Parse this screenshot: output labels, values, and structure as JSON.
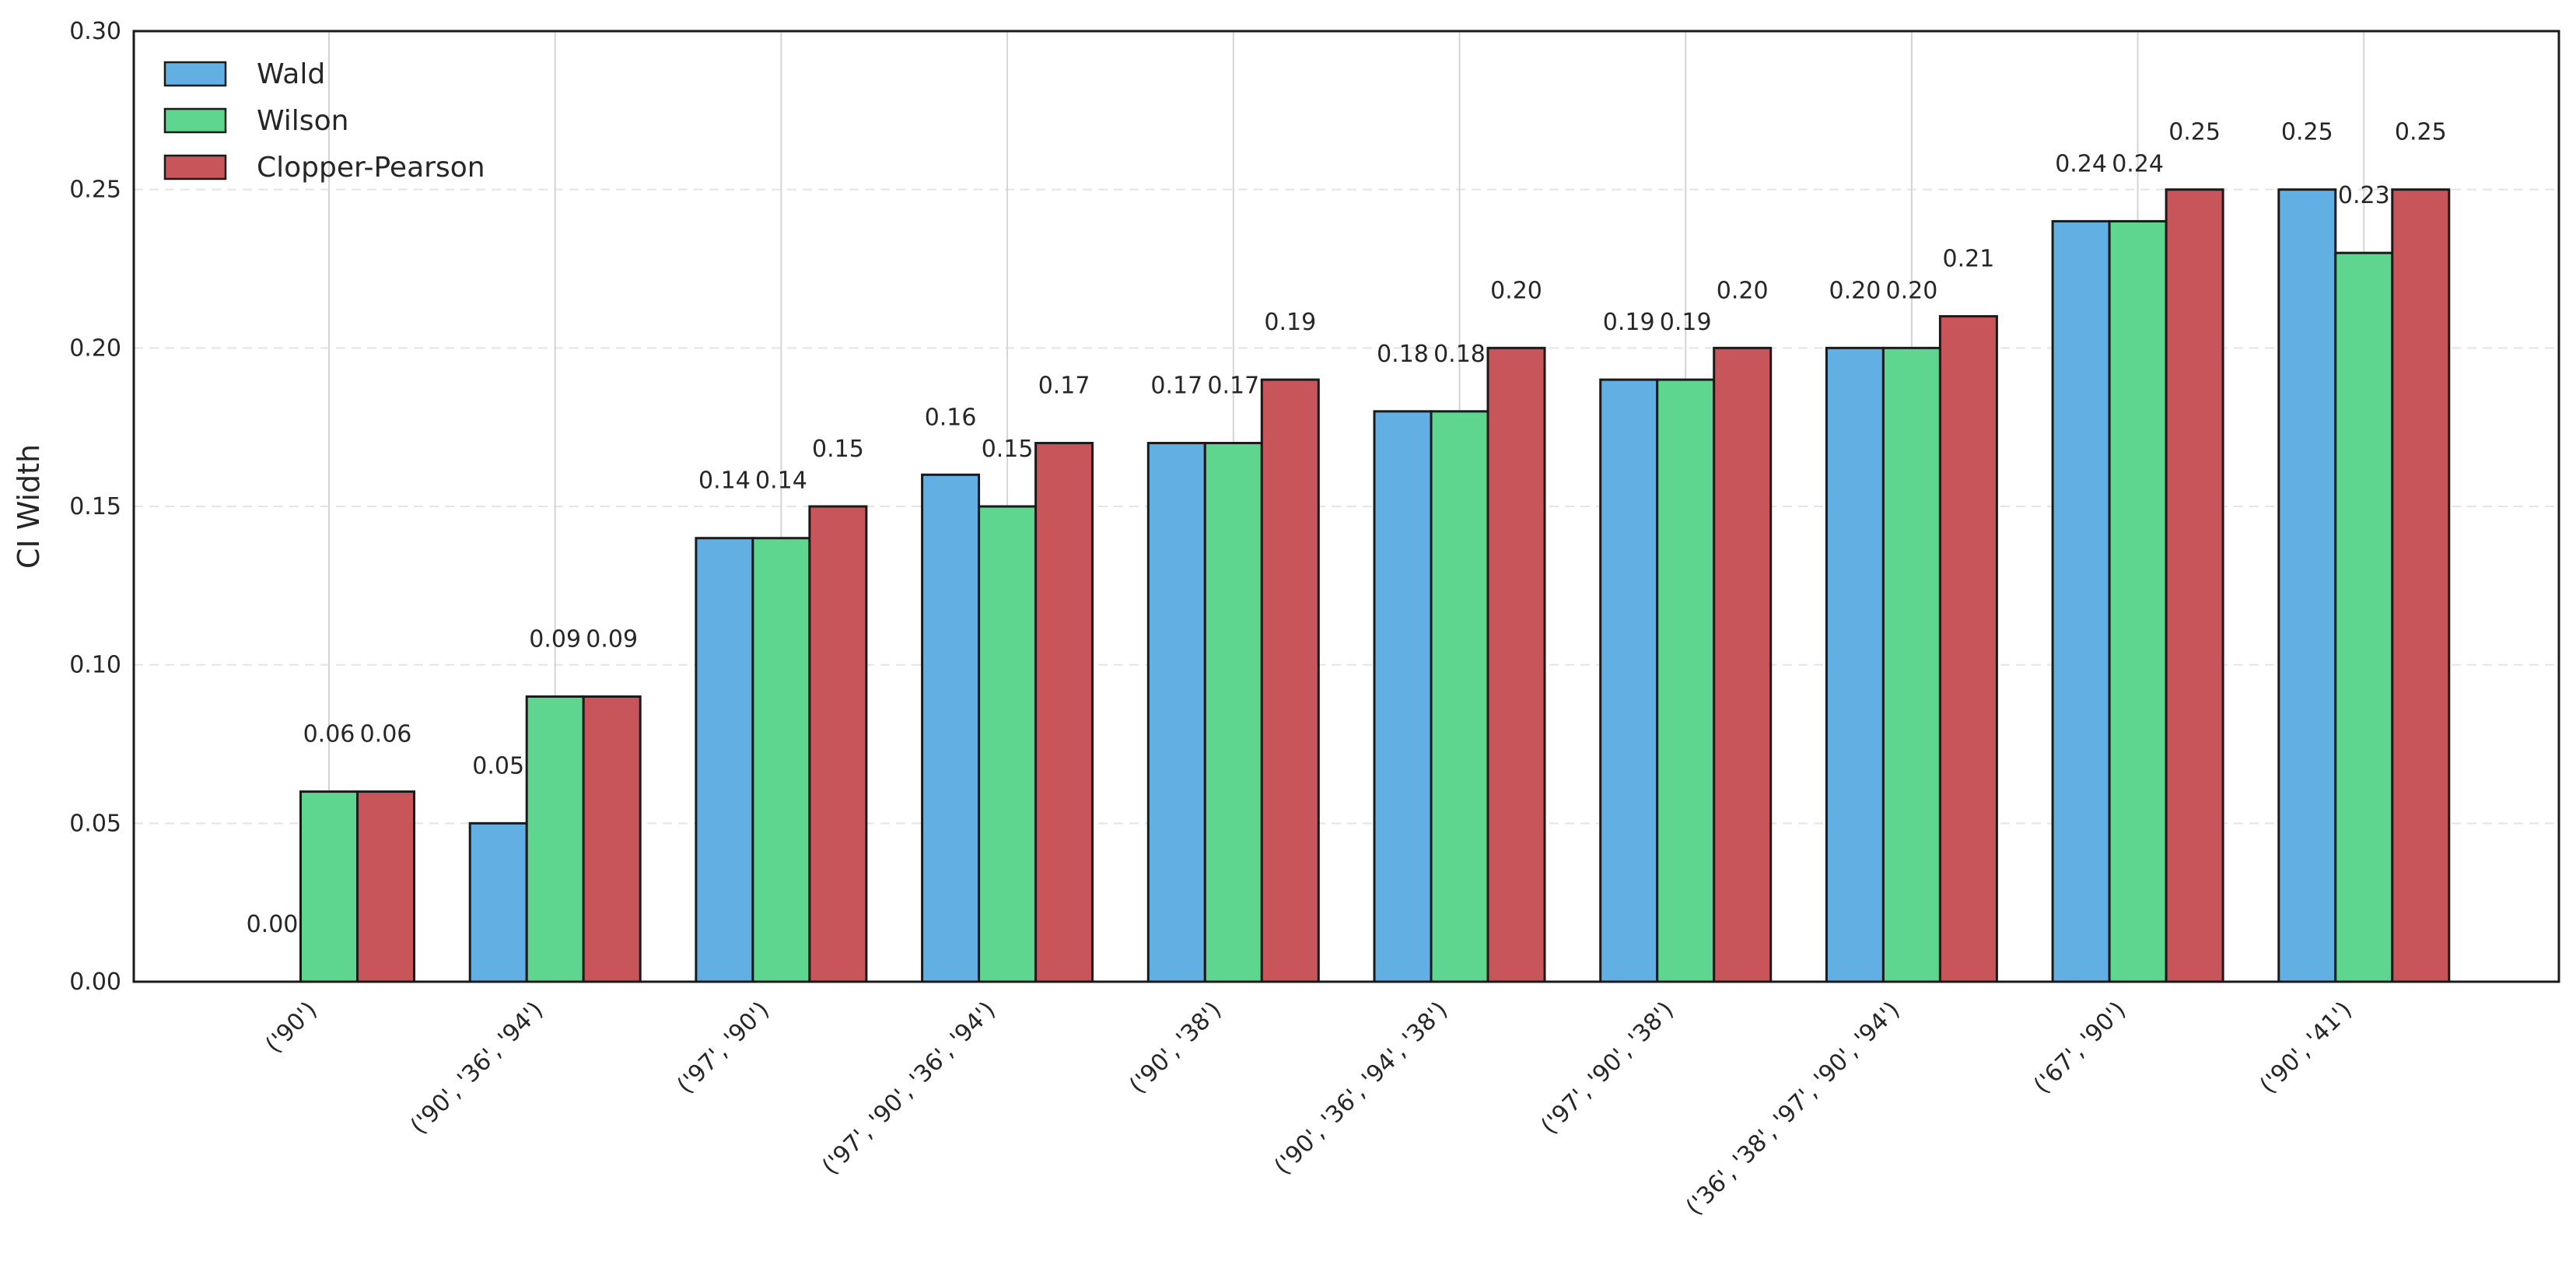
{
  "chart_data": {
    "type": "bar",
    "title": "",
    "xlabel": "",
    "ylabel": "CI Width",
    "ylim": [
      0,
      0.3
    ],
    "yticks": [
      "0.00",
      "0.05",
      "0.10",
      "0.15",
      "0.20",
      "0.25",
      "0.30"
    ],
    "grid": {
      "x": true,
      "y": true,
      "y_style": "dashed"
    },
    "legend_position": "top-left",
    "categories": [
      "('90')",
      "('90', '36', '94')",
      "('97', '90')",
      "('97', '90', '36', '94')",
      "('90', '38')",
      "('90', '36', '94', '38')",
      "('97', '90', '38')",
      "('36', '38', '97', '90', '94')",
      "('67', '90')",
      "('90', '41')"
    ],
    "series": [
      {
        "name": "Wald",
        "color": "#62b0e3",
        "values": [
          0.0,
          0.05,
          0.14,
          0.16,
          0.17,
          0.18,
          0.19,
          0.2,
          0.24,
          0.25
        ],
        "labels": [
          "0.00",
          "0.05",
          "0.14",
          "0.16",
          "0.17",
          "0.18",
          "0.19",
          "0.20",
          "0.24",
          "0.25"
        ]
      },
      {
        "name": "Wilson",
        "color": "#5ed68f",
        "values": [
          0.06,
          0.09,
          0.14,
          0.15,
          0.17,
          0.18,
          0.19,
          0.2,
          0.24,
          0.23
        ],
        "labels": [
          "0.06",
          "0.09",
          "0.14",
          "0.15",
          "0.17",
          "0.18",
          "0.19",
          "0.20",
          "0.24",
          "0.23"
        ]
      },
      {
        "name": "Clopper-Pearson",
        "color": "#c8555a",
        "values": [
          0.06,
          0.09,
          0.15,
          0.17,
          0.19,
          0.2,
          0.2,
          0.21,
          0.25,
          0.25
        ],
        "labels": [
          "0.06",
          "0.09",
          "0.15",
          "0.17",
          "0.19",
          "0.20",
          "0.20",
          "0.21",
          "0.25",
          "0.25"
        ]
      }
    ]
  }
}
